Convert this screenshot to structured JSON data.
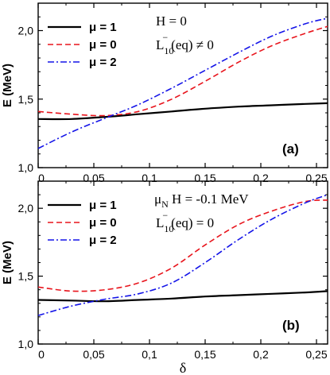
{
  "chart_data": [
    {
      "type": "line",
      "panel": "(a)",
      "ylabel": "E (MeV)",
      "xlabel": "",
      "xlim": [
        0,
        0.26
      ],
      "ylim": [
        1.0,
        2.2
      ],
      "xticks": [
        "0",
        "0,05",
        "0,1",
        "0,15",
        "0,2",
        "0,25"
      ],
      "yticks": [
        "1,0",
        "1,5",
        "2,0"
      ],
      "annotation": {
        "line1": "H = 0",
        "line2_main": "L",
        "line2_sub": "10",
        "line2_sup": "−",
        "line2_rest": "(eq) ≠ 0"
      },
      "legend_position": "top-left",
      "series": [
        {
          "name": "μ = 1",
          "color": "#000000",
          "dash": "solid",
          "x": [
            0,
            0.03,
            0.06,
            0.09,
            0.12,
            0.15,
            0.18,
            0.21,
            0.24,
            0.26
          ],
          "y": [
            1.355,
            1.355,
            1.37,
            1.39,
            1.41,
            1.43,
            1.445,
            1.455,
            1.465,
            1.47
          ]
        },
        {
          "name": "μ = 0",
          "color": "#e8141c",
          "dash": "dashed",
          "x": [
            0,
            0.03,
            0.06,
            0.09,
            0.12,
            0.15,
            0.18,
            0.21,
            0.24,
            0.26
          ],
          "y": [
            1.41,
            1.39,
            1.38,
            1.41,
            1.5,
            1.63,
            1.77,
            1.89,
            1.98,
            2.03
          ]
        },
        {
          "name": "μ = 2",
          "color": "#1414e8",
          "dash": "dashdot",
          "x": [
            0,
            0.03,
            0.06,
            0.09,
            0.12,
            0.15,
            0.18,
            0.21,
            0.24,
            0.26
          ],
          "y": [
            1.14,
            1.26,
            1.36,
            1.46,
            1.58,
            1.71,
            1.84,
            1.96,
            2.05,
            2.09
          ]
        }
      ]
    },
    {
      "type": "line",
      "panel": "(b)",
      "ylabel": "E (MeV)",
      "xlabel": "δ",
      "xlim": [
        0,
        0.26
      ],
      "ylim": [
        1.0,
        2.2
      ],
      "xticks": [
        "0",
        "0,05",
        "0,1",
        "0,15",
        "0,2",
        "0,25"
      ],
      "yticks": [
        "1,0",
        "1,5",
        "2,0"
      ],
      "annotation": {
        "line1_main": "μ",
        "line1_sub": "N",
        "line1_rest": "H = -0.1 MeV",
        "line2_main": "L",
        "line2_sub": "10",
        "line2_sup": "−",
        "line2_rest": "(eq) = 0"
      },
      "legend_position": "top-left",
      "series": [
        {
          "name": "μ = 1",
          "color": "#000000",
          "dash": "solid",
          "x": [
            0,
            0.03,
            0.06,
            0.09,
            0.12,
            0.15,
            0.18,
            0.21,
            0.24,
            0.26
          ],
          "y": [
            1.325,
            1.32,
            1.315,
            1.325,
            1.335,
            1.35,
            1.36,
            1.37,
            1.38,
            1.39
          ]
        },
        {
          "name": "μ = 0",
          "color": "#e8141c",
          "dash": "dashed",
          "x": [
            0,
            0.03,
            0.06,
            0.09,
            0.12,
            0.15,
            0.18,
            0.21,
            0.24,
            0.26
          ],
          "y": [
            1.42,
            1.39,
            1.4,
            1.45,
            1.56,
            1.73,
            1.88,
            1.98,
            2.05,
            2.06
          ]
        },
        {
          "name": "μ = 2",
          "color": "#1414e8",
          "dash": "dashdot",
          "x": [
            0,
            0.03,
            0.06,
            0.09,
            0.12,
            0.15,
            0.18,
            0.21,
            0.24,
            0.26
          ],
          "y": [
            1.21,
            1.28,
            1.33,
            1.37,
            1.45,
            1.6,
            1.77,
            1.92,
            2.04,
            2.1
          ]
        }
      ]
    }
  ]
}
